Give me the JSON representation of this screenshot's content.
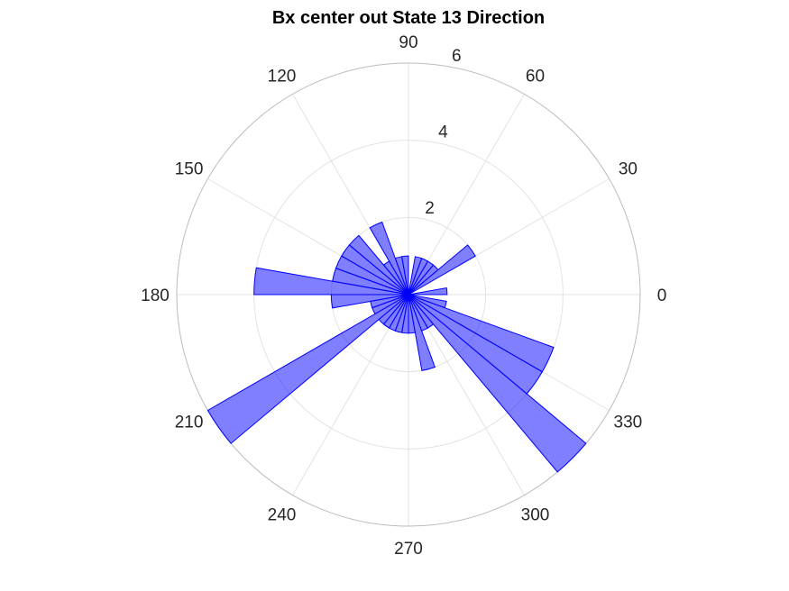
{
  "chart_data": {
    "type": "polar-histogram",
    "title": "Bx  center out State 13 Direction",
    "theta_unit": "degrees",
    "bin_width_deg": 10,
    "bin_start_deg": 0,
    "r_ticks": [
      "2",
      "4",
      "6"
    ],
    "r_max": 6,
    "theta_ticks": [
      "0",
      "30",
      "60",
      "90",
      "120",
      "150",
      "180",
      "210",
      "240",
      "270",
      "300",
      "330"
    ],
    "bins": [
      {
        "from": 0,
        "to": 10,
        "count": 1
      },
      {
        "from": 10,
        "to": 20,
        "count": 0
      },
      {
        "from": 20,
        "to": 30,
        "count": 0
      },
      {
        "from": 30,
        "to": 40,
        "count": 2
      },
      {
        "from": 40,
        "to": 50,
        "count": 1
      },
      {
        "from": 50,
        "to": 60,
        "count": 1
      },
      {
        "from": 60,
        "to": 70,
        "count": 1
      },
      {
        "from": 70,
        "to": 80,
        "count": 1
      },
      {
        "from": 80,
        "to": 90,
        "count": 0
      },
      {
        "from": 90,
        "to": 100,
        "count": 1
      },
      {
        "from": 100,
        "to": 110,
        "count": 1
      },
      {
        "from": 110,
        "to": 120,
        "count": 2
      },
      {
        "from": 120,
        "to": 130,
        "count": 1
      },
      {
        "from": 130,
        "to": 140,
        "count": 2
      },
      {
        "from": 140,
        "to": 150,
        "count": 2
      },
      {
        "from": 150,
        "to": 160,
        "count": 2
      },
      {
        "from": 160,
        "to": 170,
        "count": 2
      },
      {
        "from": 170,
        "to": 180,
        "count": 4
      },
      {
        "from": 180,
        "to": 190,
        "count": 2
      },
      {
        "from": 190,
        "to": 200,
        "count": 1
      },
      {
        "from": 200,
        "to": 210,
        "count": 1
      },
      {
        "from": 210,
        "to": 220,
        "count": 6
      },
      {
        "from": 220,
        "to": 230,
        "count": 1
      },
      {
        "from": 230,
        "to": 240,
        "count": 1
      },
      {
        "from": 240,
        "to": 250,
        "count": 1
      },
      {
        "from": 250,
        "to": 260,
        "count": 1
      },
      {
        "from": 260,
        "to": 270,
        "count": 1
      },
      {
        "from": 270,
        "to": 280,
        "count": 1
      },
      {
        "from": 280,
        "to": 290,
        "count": 2
      },
      {
        "from": 290,
        "to": 300,
        "count": 1
      },
      {
        "from": 300,
        "to": 310,
        "count": 1
      },
      {
        "from": 310,
        "to": 320,
        "count": 6
      },
      {
        "from": 320,
        "to": 330,
        "count": 4
      },
      {
        "from": 330,
        "to": 340,
        "count": 4
      },
      {
        "from": 340,
        "to": 350,
        "count": 1
      },
      {
        "from": 350,
        "to": 360,
        "count": 0
      }
    ],
    "grid": true,
    "face_color": "#0000ff",
    "edge_color": "#0000ff",
    "face_alpha": 0.5
  }
}
